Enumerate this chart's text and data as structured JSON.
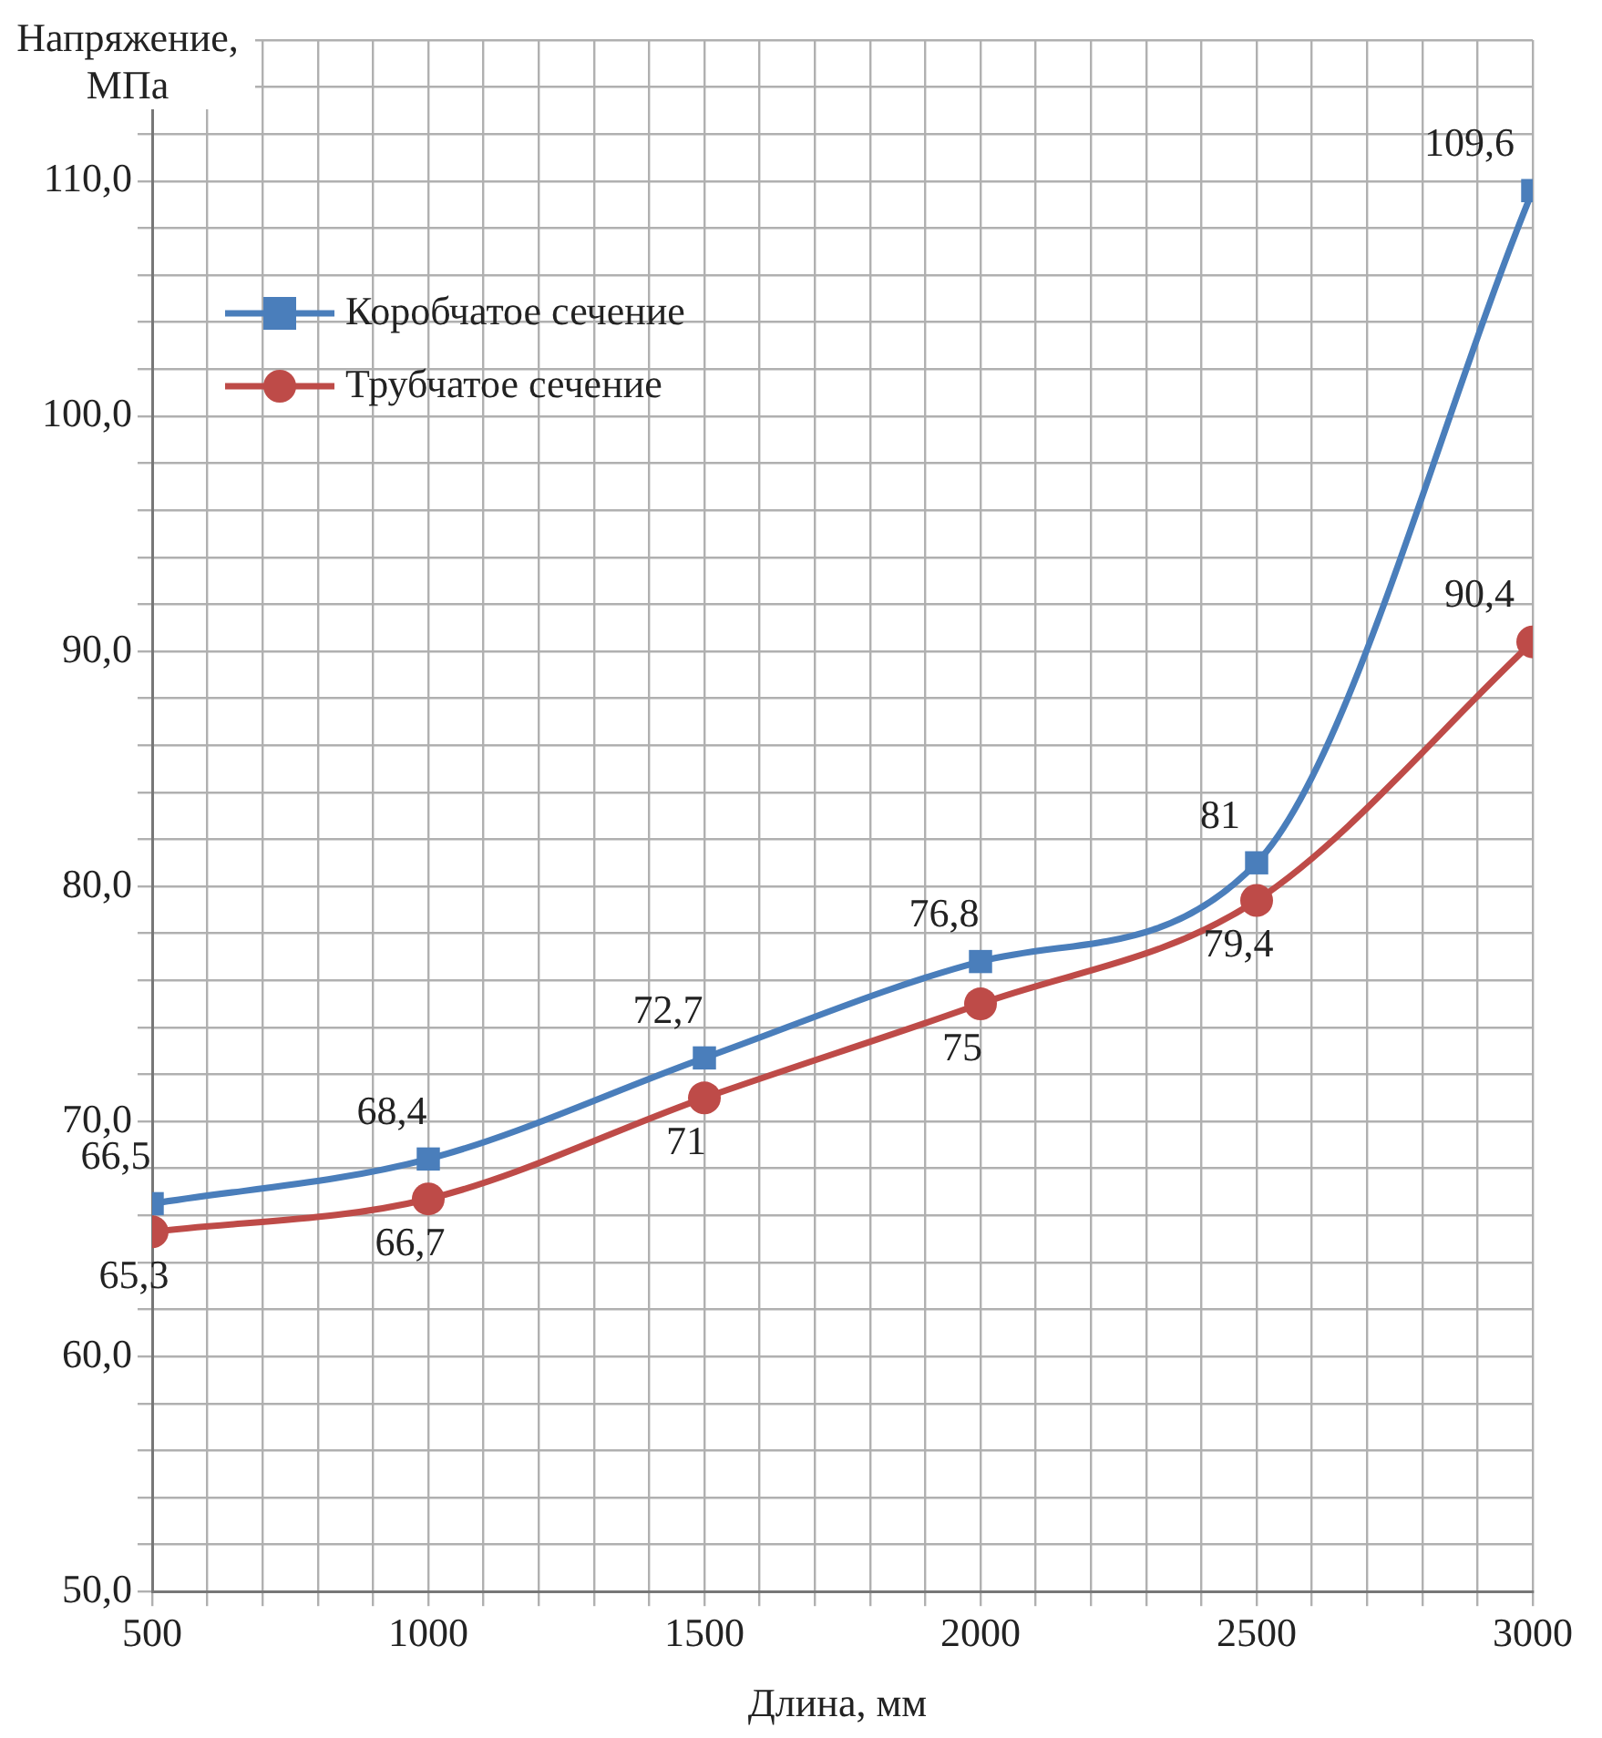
{
  "chart_data": {
    "type": "line",
    "xlabel": "Длина, мм",
    "ylabel": "Напряжение, МПа",
    "x": [
      500,
      1000,
      1500,
      2000,
      2500,
      3000
    ],
    "series": [
      {
        "name": "Коробчатое сечение",
        "color": "#4a7ebb",
        "marker": "square",
        "values": [
          66.5,
          68.4,
          72.7,
          76.8,
          81,
          109.6
        ],
        "value_labels": [
          "66,5",
          "68,4",
          "72,7",
          "76,8",
          "81",
          "109,6"
        ]
      },
      {
        "name": "Трубчатое сечение",
        "color": "#be4b48",
        "marker": "circle",
        "values": [
          65.3,
          66.7,
          71,
          75,
          79.4,
          90.4
        ],
        "value_labels": [
          "65,3",
          "66,7",
          "71",
          "75",
          "79,4",
          "90,4"
        ]
      }
    ],
    "xlim": [
      500,
      3000
    ],
    "xticks": [
      500,
      {
        "value": 600,
        "label": null
      },
      {
        "value": 700,
        "label": null
      },
      {
        "value": 800,
        "label": null
      },
      {
        "value": 900,
        "label": null
      },
      1000,
      {
        "value": 1100,
        "label": null
      },
      {
        "value": 1200,
        "label": null
      },
      {
        "value": 1300,
        "label": null
      },
      {
        "value": 1400,
        "label": null
      },
      1500,
      {
        "value": 1600,
        "label": null
      },
      {
        "value": 1700,
        "label": null
      },
      {
        "value": 1800,
        "label": null
      },
      {
        "value": 1900,
        "label": null
      },
      2000,
      {
        "value": 2100,
        "label": null
      },
      {
        "value": 2200,
        "label": null
      },
      {
        "value": 2300,
        "label": null
      },
      {
        "value": 2400,
        "label": null
      },
      2500,
      {
        "value": 2600,
        "label": null
      },
      {
        "value": 2700,
        "label": null
      },
      {
        "value": 2800,
        "label": null
      },
      {
        "value": 2900,
        "label": null
      },
      3000
    ],
    "ylim": [
      50,
      116
    ],
    "yticks": [
      {
        "value": 50,
        "label": "50,0"
      },
      {
        "value": 52,
        "label": null
      },
      {
        "value": 54,
        "label": null
      },
      {
        "value": 56,
        "label": null
      },
      {
        "value": 58,
        "label": null
      },
      {
        "value": 60,
        "label": "60,0"
      },
      {
        "value": 62,
        "label": null
      },
      {
        "value": 64,
        "label": null
      },
      {
        "value": 66,
        "label": null
      },
      {
        "value": 68,
        "label": null
      },
      {
        "value": 70,
        "label": "70,0"
      },
      {
        "value": 72,
        "label": null
      },
      {
        "value": 74,
        "label": null
      },
      {
        "value": 76,
        "label": null
      },
      {
        "value": 78,
        "label": null
      },
      {
        "value": 80,
        "label": "80,0"
      },
      {
        "value": 82,
        "label": null
      },
      {
        "value": 84,
        "label": null
      },
      {
        "value": 86,
        "label": null
      },
      {
        "value": 88,
        "label": null
      },
      {
        "value": 90,
        "label": "90,0"
      },
      {
        "value": 92,
        "label": null
      },
      {
        "value": 94,
        "label": null
      },
      {
        "value": 96,
        "label": null
      },
      {
        "value": 98,
        "label": null
      },
      {
        "value": 100,
        "label": "100,0"
      },
      {
        "value": 102,
        "label": null
      },
      {
        "value": 104,
        "label": null
      },
      {
        "value": 106,
        "label": null
      },
      {
        "value": 108,
        "label": null
      },
      {
        "value": 110,
        "label": "110,0"
      },
      {
        "value": 112,
        "label": null
      },
      {
        "value": 114,
        "label": null
      },
      {
        "value": 116,
        "label": null
      }
    ],
    "grid": true,
    "legend": "top left"
  }
}
